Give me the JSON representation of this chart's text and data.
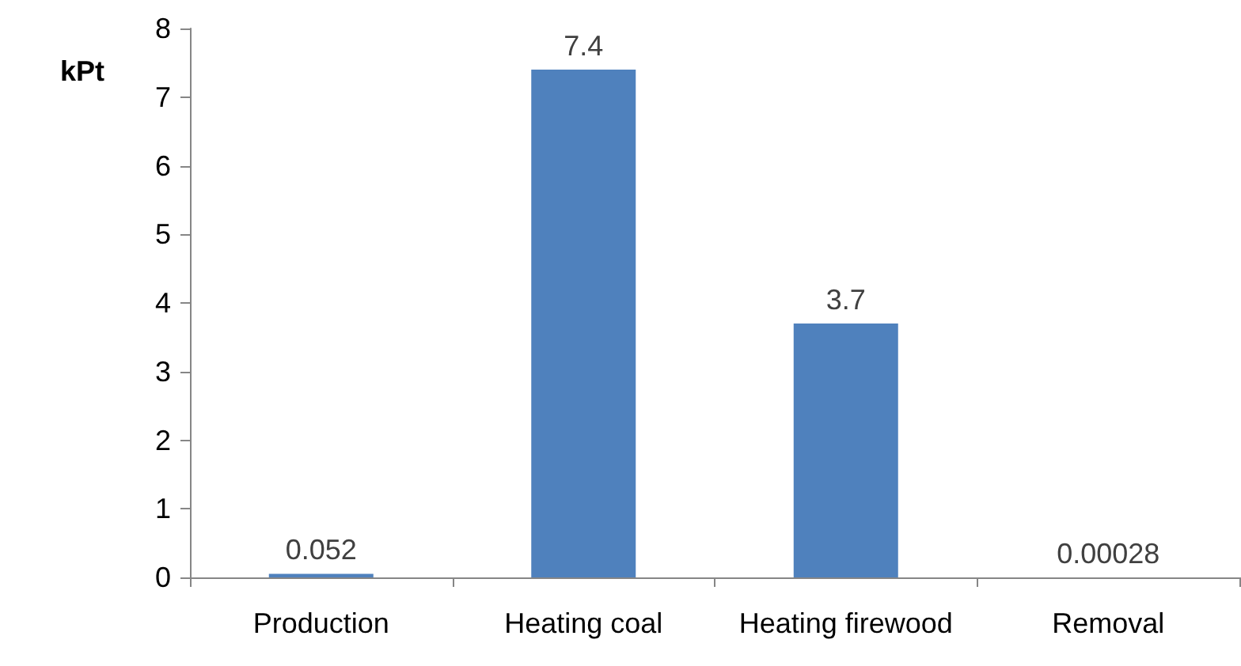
{
  "chart_data": {
    "type": "bar",
    "ylabel": "kPt",
    "categories": [
      "Production",
      "Heating coal",
      "Heating firewood",
      "Removal"
    ],
    "values": [
      0.052,
      7.4,
      3.7,
      0.00028
    ],
    "color": "#4f81bd",
    "value_labels": [
      "0.052",
      "7.4",
      "3.7",
      "0.00028"
    ],
    "ylim": [
      0,
      8
    ],
    "yticks": [
      0,
      1,
      2,
      3,
      4,
      5,
      6,
      7,
      8
    ],
    "grid": false
  }
}
